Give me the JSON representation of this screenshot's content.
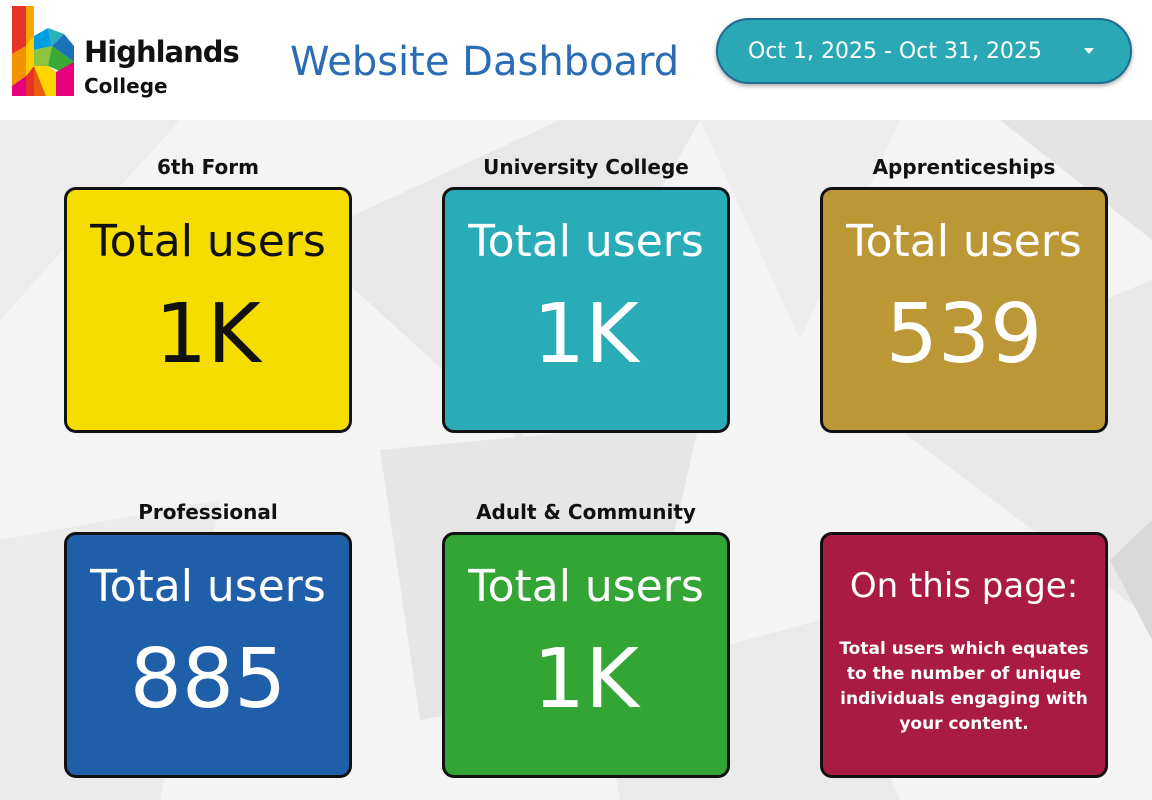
{
  "logo": {
    "line1": "Highlands",
    "line2": "College"
  },
  "header": {
    "title": "Website Dashboard"
  },
  "date_range": {
    "value": "Oct 1, 2025 - Oct 31, 2025"
  },
  "cards": [
    {
      "label": "6th Form",
      "metric": "Total users",
      "value": "1K",
      "color": "#f5dd00",
      "text_color": "#111111"
    },
    {
      "label": "University College",
      "metric": "Total users",
      "value": "1K",
      "color": "#2aacb8",
      "text_color": "#ffffff"
    },
    {
      "label": "Apprenticeships",
      "metric": "Total users",
      "value": "539",
      "color": "#bb9736",
      "text_color": "#ffffff"
    },
    {
      "label": "Professional",
      "metric": "Total users",
      "value": "885",
      "color": "#1f5ea8",
      "text_color": "#ffffff"
    },
    {
      "label": "Adult & Community",
      "metric": "Total users",
      "value": "1K",
      "color": "#33a534",
      "text_color": "#ffffff"
    }
  ],
  "info_card": {
    "title": "On this page:",
    "body": "Total users which equates to the number of unique individuals engaging with your content.",
    "color": "#a91b42"
  }
}
